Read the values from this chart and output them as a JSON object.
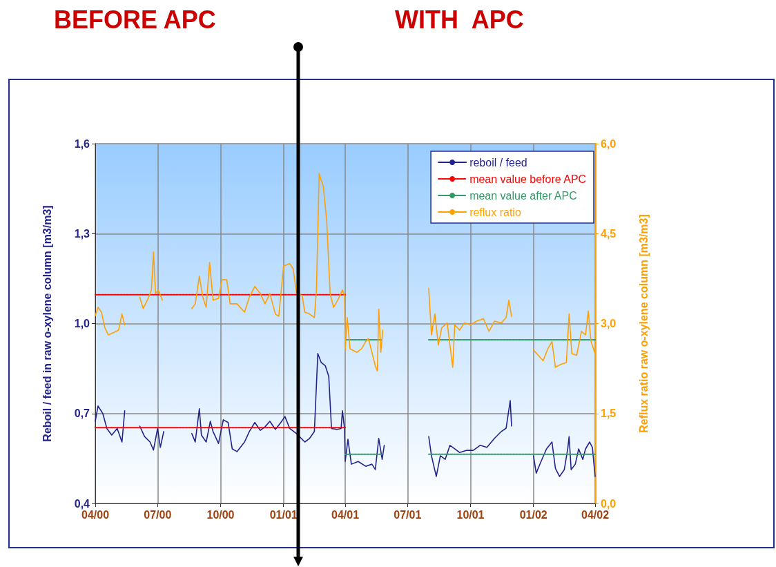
{
  "chart_data": {
    "type": "line",
    "annotations": [
      "BEFORE APC",
      "WITH  APC"
    ],
    "ylabel": "Reboil / feed in raw o-xylene column [m3/m3]",
    "y2label": "Reflux ratio raw o-xylene column [m3/m3]",
    "xlim": [
      "2000-04-01",
      "2002-04-01"
    ],
    "xticks": [
      {
        "value": "2000-04-01",
        "label": "04/00"
      },
      {
        "value": "2000-07-01",
        "label": "07/00"
      },
      {
        "value": "2000-10-01",
        "label": "10/00"
      },
      {
        "value": "2001-01-01",
        "label": "01/01"
      },
      {
        "value": "2001-04-01",
        "label": "04/01"
      },
      {
        "value": "2001-07-01",
        "label": "07/01"
      },
      {
        "value": "2001-10-01",
        "label": "10/01"
      },
      {
        "value": "2002-01-01",
        "label": "01/02"
      },
      {
        "value": "2002-04-01",
        "label": "04/02"
      }
    ],
    "ylim": [
      0.4,
      1.6
    ],
    "yticks": [
      {
        "value": 0.4,
        "label": "0,4"
      },
      {
        "value": 0.7,
        "label": "0,7"
      },
      {
        "value": 1.0,
        "label": "1,0"
      },
      {
        "value": 1.3,
        "label": "1,3"
      },
      {
        "value": 1.6,
        "label": "1,6"
      }
    ],
    "y2lim": [
      0,
      6
    ],
    "y2ticks": [
      {
        "value": 0,
        "label": "0,0"
      },
      {
        "value": 1.5,
        "label": "1,5"
      },
      {
        "value": 3,
        "label": "3,0"
      },
      {
        "value": 4.5,
        "label": "4,5"
      },
      {
        "value": 6,
        "label": "6,0"
      }
    ],
    "grid": true,
    "legend": "top right",
    "ref_lines": [
      {
        "axis": "x",
        "value": "2001-01-22",
        "color": "#000000"
      }
    ],
    "series": [
      {
        "name": "reboil / feed",
        "color": "#23238e",
        "x": [
          "2000-04-01",
          "2000-04-05",
          "2000-04-12",
          "2000-04-18",
          "2000-04-25",
          "2000-05-03",
          "2000-05-10",
          "2000-05-14",
          "2000-05-25",
          "2000-06-05",
          "2000-06-12",
          "2000-06-20",
          "2000-06-25",
          "2000-07-01",
          "2000-07-05",
          "2000-07-10",
          "2000-07-25",
          "2000-08-20",
          "2000-08-25",
          "2000-08-31",
          "2000-09-03",
          "2000-09-10",
          "2000-09-16",
          "2000-09-20",
          "2000-09-28",
          "2000-10-05",
          "2000-10-12",
          "2000-10-18",
          "2000-10-25",
          "2000-11-05",
          "2000-11-12",
          "2000-11-20",
          "2000-11-28",
          "2000-12-05",
          "2000-12-12",
          "2000-12-20",
          "2000-12-28",
          "2001-01-03",
          "2001-01-10",
          "2001-01-20",
          "2001-02-01",
          "2001-02-08",
          "2001-02-15",
          "2001-02-20",
          "2001-02-25",
          "2001-03-03",
          "2001-03-08",
          "2001-03-12",
          "2001-03-20",
          "2001-03-26",
          "2001-03-28",
          "2001-03-31",
          "2001-04-01",
          "2001-04-05",
          "2001-04-10",
          "2001-04-20",
          "2001-05-01",
          "2001-05-10",
          "2001-05-15",
          "2001-05-20",
          "2001-05-25",
          "2001-05-28",
          "2001-07-01",
          "2001-08-01",
          "2001-08-05",
          "2001-08-12",
          "2001-08-18",
          "2001-08-25",
          "2001-09-01",
          "2001-09-08",
          "2001-09-15",
          "2001-09-25",
          "2001-10-05",
          "2001-10-15",
          "2001-10-25",
          "2001-11-05",
          "2001-11-15",
          "2001-11-22",
          "2001-11-28",
          "2001-11-30",
          "2001-12-15",
          "2002-01-01",
          "2002-01-05",
          "2002-01-12",
          "2002-01-20",
          "2002-01-28",
          "2002-02-02",
          "2002-02-08",
          "2002-02-15",
          "2002-02-20",
          "2002-02-22",
          "2002-02-25",
          "2002-03-03",
          "2002-03-08",
          "2002-03-14",
          "2002-03-18",
          "2002-03-24",
          "2002-03-28",
          "2002-04-01"
        ],
        "values": [
          0.674,
          0.725,
          0.7,
          0.65,
          0.628,
          0.65,
          0.605,
          0.709,
          null,
          0.658,
          0.623,
          0.605,
          0.578,
          0.65,
          0.587,
          0.64,
          null,
          0.633,
          0.605,
          0.716,
          0.628,
          0.605,
          0.674,
          0.64,
          0.6,
          0.679,
          0.67,
          0.582,
          0.573,
          0.605,
          0.64,
          0.67,
          0.644,
          0.656,
          0.674,
          0.647,
          0.67,
          0.69,
          0.65,
          0.633,
          0.605,
          0.617,
          0.64,
          0.9,
          0.87,
          0.859,
          0.824,
          0.65,
          0.647,
          0.65,
          0.709,
          0.65,
          0.54,
          0.614,
          0.531,
          0.54,
          0.524,
          0.531,
          0.513,
          0.617,
          0.547,
          0.594,
          null,
          0.623,
          0.559,
          0.49,
          0.559,
          0.547,
          0.594,
          0.582,
          0.57,
          0.577,
          0.577,
          0.594,
          0.587,
          0.617,
          0.64,
          0.651,
          0.743,
          0.658,
          null,
          0.559,
          0.501,
          0.54,
          0.582,
          0.605,
          0.517,
          0.49,
          0.513,
          0.582,
          0.623,
          0.513,
          0.531,
          0.582,
          0.547,
          0.582,
          0.605,
          0.587,
          0.49
        ]
      },
      {
        "name": "mean value before APC",
        "color": "#ff0000",
        "line_style": "dashed",
        "x": [
          "2000-04-01",
          "2001-04-01"
        ],
        "values": [
          0.653,
          0.653
        ]
      },
      {
        "name": "mean value after APC",
        "color": "#339966",
        "line_style": "dashed",
        "x": [
          "2001-04-01",
          "2001-05-25",
          "2001-07-01",
          "2001-08-01",
          "2002-04-01"
        ],
        "values": [
          0.564,
          0.564,
          null,
          0.564,
          0.564
        ]
      },
      {
        "name": "reflux ratio",
        "color": "#ffa000",
        "axis": "y2",
        "x": [
          "2000-04-01",
          "2000-04-05",
          "2000-04-10",
          "2000-04-15",
          "2000-04-20",
          "2000-04-28",
          "2000-05-05",
          "2000-05-10",
          "2000-05-14",
          "2000-05-25",
          "2000-06-05",
          "2000-06-10",
          "2000-06-18",
          "2000-06-22",
          "2000-06-25",
          "2000-06-28",
          "2000-07-02",
          "2000-07-08",
          "2000-07-25",
          "2000-08-20",
          "2000-08-25",
          "2000-08-31",
          "2000-09-05",
          "2000-09-10",
          "2000-09-15",
          "2000-09-20",
          "2000-09-28",
          "2000-10-03",
          "2000-10-10",
          "2000-10-15",
          "2000-10-25",
          "2000-11-05",
          "2000-11-12",
          "2000-11-20",
          "2000-11-28",
          "2000-12-05",
          "2000-12-12",
          "2000-12-20",
          "2000-12-25",
          "2001-01-01",
          "2001-01-10",
          "2001-01-15",
          "2001-01-20",
          "2001-01-28",
          "2001-02-01",
          "2001-02-08",
          "2001-02-15",
          "2001-02-18",
          "2001-02-22",
          "2001-02-28",
          "2001-03-05",
          "2001-03-10",
          "2001-03-15",
          "2001-03-22",
          "2001-03-28",
          "2001-03-31",
          "2001-04-01",
          "2001-04-04",
          "2001-04-08",
          "2001-04-18",
          "2001-04-25",
          "2001-05-01",
          "2001-05-05",
          "2001-05-10",
          "2001-05-15",
          "2001-05-18",
          "2001-05-20",
          "2001-05-23",
          "2001-05-26",
          "2001-07-01",
          "2001-08-01",
          "2001-08-05",
          "2001-08-10",
          "2001-08-15",
          "2001-08-20",
          "2001-08-28",
          "2001-09-05",
          "2001-09-08",
          "2001-09-15",
          "2001-09-22",
          "2001-10-01",
          "2001-10-10",
          "2001-10-20",
          "2001-10-28",
          "2001-11-05",
          "2001-11-15",
          "2001-11-22",
          "2001-11-26",
          "2001-11-30",
          "2001-12-15",
          "2002-01-01",
          "2002-01-08",
          "2002-01-15",
          "2002-01-22",
          "2002-01-28",
          "2002-02-02",
          "2002-02-10",
          "2002-02-18",
          "2002-02-22",
          "2002-02-26",
          "2002-03-05",
          "2002-03-12",
          "2002-03-18",
          "2002-03-22",
          "2002-03-26",
          "2002-04-01"
        ],
        "values": [
          3.13,
          3.27,
          3.19,
          2.93,
          2.81,
          2.85,
          2.89,
          3.16,
          2.98,
          null,
          3.44,
          3.25,
          3.44,
          3.56,
          4.19,
          3.5,
          3.56,
          3.39,
          null,
          3.25,
          3.33,
          3.79,
          3.44,
          3.27,
          4.02,
          3.39,
          3.42,
          3.73,
          3.73,
          3.33,
          3.33,
          3.19,
          3.44,
          3.62,
          3.5,
          3.33,
          3.5,
          3.16,
          3.12,
          3.96,
          4.0,
          3.91,
          3.5,
          3.47,
          3.19,
          3.16,
          3.1,
          3.56,
          5.5,
          5.29,
          4.71,
          3.5,
          3.27,
          3.41,
          3.56,
          3.47,
          2.56,
          3.1,
          2.58,
          2.52,
          2.58,
          2.7,
          2.75,
          2.52,
          2.29,
          2.21,
          3.24,
          2.52,
          2.89,
          null,
          3.59,
          2.81,
          3.16,
          2.64,
          2.93,
          3.01,
          2.27,
          2.98,
          2.89,
          3.01,
          2.98,
          3.04,
          3.08,
          2.87,
          3.04,
          3.01,
          3.1,
          3.39,
          3.12,
          null,
          2.56,
          2.47,
          2.38,
          2.58,
          2.7,
          2.27,
          2.32,
          2.35,
          3.16,
          2.5,
          2.47,
          2.87,
          2.81,
          3.21,
          2.7,
          2.5
        ]
      },
      {
        "color": "#ff0000",
        "line_style": "dashed",
        "axis": "y2",
        "x": [
          "2000-04-01",
          "2001-04-01"
        ],
        "values": [
          3.48,
          3.48
        ]
      },
      {
        "color": "#339966",
        "line_style": "dashed",
        "axis": "y2",
        "x": [
          "2001-04-01",
          "2001-05-25",
          "2001-07-01",
          "2001-08-01",
          "2002-04-01"
        ],
        "values": [
          2.73,
          2.73,
          null,
          2.73,
          2.73
        ]
      }
    ]
  }
}
